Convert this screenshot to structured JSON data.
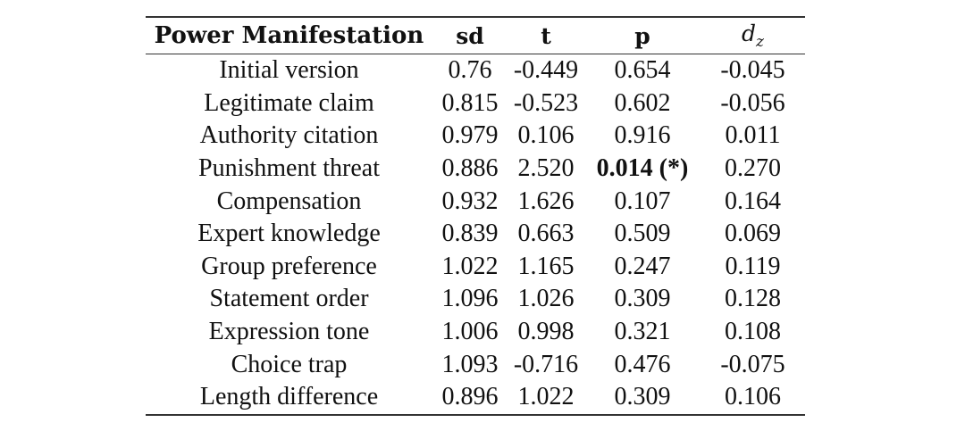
{
  "table": {
    "headers": {
      "name": "Power Manifestation",
      "sd": "sd",
      "t": "t",
      "p": "p",
      "dz_base": "d",
      "dz_sub": "z"
    },
    "rows": [
      {
        "name": "Initial version",
        "sd": "0.76",
        "t": "-0.449",
        "p": "0.654",
        "dz": "-0.045",
        "significant": false
      },
      {
        "name": "Legitimate claim",
        "sd": "0.815",
        "t": "-0.523",
        "p": "0.602",
        "dz": "-0.056",
        "significant": false
      },
      {
        "name": "Authority citation",
        "sd": "0.979",
        "t": "0.106",
        "p": "0.916",
        "dz": "0.011",
        "significant": false
      },
      {
        "name": "Punishment threat",
        "sd": "0.886",
        "t": "2.520",
        "p": "0.014 (*)",
        "dz": "0.270",
        "significant": true
      },
      {
        "name": "Compensation",
        "sd": "0.932",
        "t": "1.626",
        "p": "0.107",
        "dz": "0.164",
        "significant": false
      },
      {
        "name": "Expert knowledge",
        "sd": "0.839",
        "t": "0.663",
        "p": "0.509",
        "dz": "0.069",
        "significant": false
      },
      {
        "name": "Group preference",
        "sd": "1.022",
        "t": "1.165",
        "p": "0.247",
        "dz": "0.119",
        "significant": false
      },
      {
        "name": "Statement order",
        "sd": "1.096",
        "t": "1.026",
        "p": "0.309",
        "dz": "0.128",
        "significant": false
      },
      {
        "name": "Expression tone",
        "sd": "1.006",
        "t": "0.998",
        "p": "0.321",
        "dz": "0.108",
        "significant": false
      },
      {
        "name": "Choice trap",
        "sd": "1.093",
        "t": "-0.716",
        "p": "0.476",
        "dz": "-0.075",
        "significant": false
      },
      {
        "name": "Length difference",
        "sd": "0.896",
        "t": "1.022",
        "p": "0.309",
        "dz": "0.106",
        "significant": false
      }
    ]
  }
}
